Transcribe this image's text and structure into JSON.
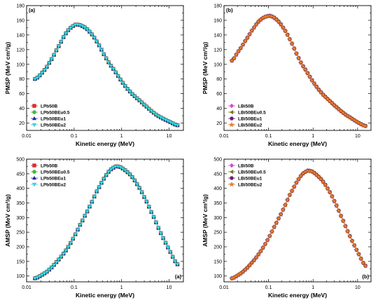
{
  "chart_data": [
    {
      "type": "line",
      "panel_label": "(a)",
      "panel_label_position": "top-left",
      "xlabel": "Kinetic energy (MeV)",
      "ylabel": "PMSP (MeV cm²/g)",
      "xscale": "log",
      "xlim": [
        0.01,
        20
      ],
      "ylim": [
        10,
        180
      ],
      "xticks": [
        0.01,
        0.1,
        1,
        10
      ],
      "xticklabels": [
        "0.01",
        "0.1",
        "1",
        "10"
      ],
      "yticks": [
        20,
        40,
        60,
        80,
        100,
        120,
        140,
        160,
        180
      ],
      "legend_position": "bottom-left",
      "x": [
        0.015,
        0.02,
        0.03,
        0.05,
        0.07,
        0.1,
        0.12,
        0.15,
        0.2,
        0.3,
        0.5,
        0.7,
        1,
        1.5,
        2,
        3,
        5,
        7,
        10,
        15
      ],
      "series": [
        {
          "name": "LPb50B",
          "color": "#e8282a",
          "marker": "square",
          "values": [
            80,
            87,
            102,
            127,
            144,
            153,
            154,
            152,
            146,
            131,
            106,
            92,
            77,
            63,
            55,
            45,
            33,
            27,
            22,
            17
          ]
        },
        {
          "name": "LPb50BEu0.5",
          "color": "#3dbf2a",
          "marker": "circle",
          "values": [
            80,
            87,
            102,
            127,
            144,
            153,
            154,
            152,
            146,
            131,
            106,
            92,
            77,
            63,
            55,
            45,
            33,
            27,
            22,
            17
          ]
        },
        {
          "name": "LPb50BEu1",
          "color": "#1f2aa8",
          "marker": "triangle",
          "values": [
            80,
            87,
            102,
            127,
            144,
            153,
            154,
            152,
            146,
            131,
            106,
            92,
            77,
            63,
            55,
            45,
            33,
            27,
            22,
            17
          ]
        },
        {
          "name": "LPb50BEu2",
          "color": "#35dbe8",
          "marker": "triangle-down",
          "values": [
            80,
            87,
            102,
            127,
            144,
            153,
            154,
            152,
            146,
            131,
            106,
            92,
            77,
            63,
            55,
            45,
            33,
            27,
            22,
            17
          ]
        }
      ]
    },
    {
      "type": "line",
      "panel_label": "(b)",
      "panel_label_position": "top-left",
      "xlabel": "Kinetic energy (MeV)",
      "ylabel": "PMSP (MeV cm²/g)",
      "xscale": "log",
      "xlim": [
        0.01,
        20
      ],
      "ylim": [
        10,
        180
      ],
      "xticks": [
        0.01,
        0.1,
        1,
        10
      ],
      "xticklabels": [
        "0.01",
        "0.1",
        "1",
        "10"
      ],
      "yticks": [
        20,
        40,
        60,
        80,
        100,
        120,
        140,
        160,
        180
      ],
      "legend_position": "bottom-left",
      "x": [
        0.015,
        0.02,
        0.03,
        0.05,
        0.07,
        0.1,
        0.12,
        0.15,
        0.2,
        0.3,
        0.5,
        0.7,
        1,
        1.5,
        2,
        3,
        5,
        7,
        10,
        15
      ],
      "series": [
        {
          "name": "LBi50B",
          "color": "#e83ee0",
          "marker": "diamond",
          "values": [
            105,
            116,
            132,
            152,
            162,
            166,
            165,
            161,
            152,
            134,
            106,
            91,
            76,
            62,
            54,
            44,
            33,
            27,
            21,
            16
          ]
        },
        {
          "name": "LBi50BEu0.5",
          "color": "#7a7a20",
          "marker": "triangle-left",
          "values": [
            105,
            116,
            132,
            152,
            162,
            166,
            165,
            161,
            152,
            134,
            106,
            91,
            76,
            62,
            54,
            44,
            33,
            27,
            21,
            16
          ]
        },
        {
          "name": "LBi50BEu1",
          "color": "#6a1a7a",
          "marker": "hexagon",
          "values": [
            105,
            116,
            132,
            152,
            162,
            166,
            165,
            161,
            152,
            134,
            106,
            91,
            76,
            62,
            54,
            44,
            33,
            27,
            21,
            16
          ]
        },
        {
          "name": "LBi50BEu2",
          "color": "#f07e27",
          "marker": "star",
          "values": [
            105,
            116,
            132,
            152,
            162,
            166,
            165,
            161,
            152,
            134,
            106,
            91,
            76,
            62,
            54,
            44,
            33,
            27,
            21,
            16
          ]
        }
      ]
    },
    {
      "type": "line",
      "panel_label": "(a)",
      "panel_label_position": "bottom-right",
      "xlabel": "Kinetic energy (MeV)",
      "ylabel": "AMSP (MeV cm²/g)",
      "xscale": "log",
      "xlim": [
        0.01,
        20
      ],
      "ylim": [
        80,
        500
      ],
      "xticks": [
        0.01,
        0.1,
        1,
        10
      ],
      "xticklabels": [
        "0.01",
        "0.1",
        "1",
        "10"
      ],
      "yticks": [
        100,
        150,
        200,
        250,
        300,
        350,
        400,
        450,
        500
      ],
      "legend_position": "top-left",
      "x": [
        0.015,
        0.02,
        0.03,
        0.05,
        0.07,
        0.1,
        0.15,
        0.2,
        0.3,
        0.5,
        0.7,
        0.8,
        1,
        1.5,
        2,
        3,
        5,
        7,
        10,
        15
      ],
      "series": [
        {
          "name": "LPb50B",
          "color": "#e8282a",
          "marker": "square",
          "values": [
            92,
            102,
            122,
            160,
            192,
            235,
            290,
            330,
            390,
            450,
            472,
            475,
            470,
            448,
            420,
            370,
            295,
            240,
            190,
            140
          ]
        },
        {
          "name": "LPb50BEu0.5",
          "color": "#3dbf2a",
          "marker": "circle",
          "values": [
            92,
            102,
            122,
            160,
            192,
            235,
            290,
            330,
            390,
            450,
            472,
            475,
            470,
            448,
            420,
            370,
            295,
            240,
            190,
            140
          ]
        },
        {
          "name": "LPb50BEu1",
          "color": "#1f2aa8",
          "marker": "triangle",
          "values": [
            92,
            102,
            122,
            160,
            192,
            235,
            290,
            330,
            390,
            450,
            472,
            475,
            470,
            448,
            420,
            370,
            295,
            240,
            190,
            140
          ]
        },
        {
          "name": "LPb50BEu2",
          "color": "#35dbe8",
          "marker": "triangle-down",
          "values": [
            92,
            102,
            122,
            160,
            192,
            235,
            290,
            330,
            390,
            450,
            472,
            475,
            470,
            448,
            420,
            370,
            295,
            240,
            190,
            140
          ]
        }
      ]
    },
    {
      "type": "line",
      "panel_label": "(b)",
      "panel_label_position": "bottom-right",
      "xlabel": "Kinetic energy (MeV)",
      "ylabel": "AMSP (MeV cm²/g)",
      "xscale": "log",
      "xlim": [
        0.01,
        20
      ],
      "ylim": [
        80,
        500
      ],
      "xticks": [
        0.01,
        0.1,
        1,
        10
      ],
      "xticklabels": [
        "0.01",
        "0.1",
        "1",
        "10"
      ],
      "yticks": [
        100,
        150,
        200,
        250,
        300,
        350,
        400,
        450,
        500
      ],
      "legend_position": "top-left",
      "x": [
        0.015,
        0.02,
        0.03,
        0.05,
        0.07,
        0.1,
        0.15,
        0.2,
        0.3,
        0.5,
        0.7,
        0.8,
        1,
        1.5,
        2,
        3,
        5,
        7,
        10,
        15
      ],
      "series": [
        {
          "name": "LBi50B",
          "color": "#e83ee0",
          "marker": "diamond",
          "values": [
            92,
            102,
            122,
            158,
            190,
            230,
            282,
            320,
            378,
            436,
            458,
            460,
            455,
            432,
            405,
            356,
            282,
            230,
            182,
            135
          ]
        },
        {
          "name": "LBi50BEu0.5",
          "color": "#7a7a20",
          "marker": "triangle-left",
          "values": [
            92,
            102,
            122,
            158,
            190,
            230,
            282,
            320,
            378,
            436,
            458,
            460,
            455,
            432,
            405,
            356,
            282,
            230,
            182,
            135
          ]
        },
        {
          "name": "LBi50BEu1",
          "color": "#6a1a7a",
          "marker": "hexagon",
          "values": [
            92,
            102,
            122,
            158,
            190,
            230,
            282,
            320,
            378,
            436,
            458,
            460,
            455,
            432,
            405,
            356,
            282,
            230,
            182,
            135
          ]
        },
        {
          "name": "LBi50BEu2",
          "color": "#f07e27",
          "marker": "star",
          "values": [
            92,
            102,
            122,
            158,
            190,
            230,
            282,
            320,
            378,
            436,
            458,
            460,
            455,
            432,
            405,
            356,
            282,
            230,
            182,
            135
          ]
        }
      ]
    }
  ]
}
